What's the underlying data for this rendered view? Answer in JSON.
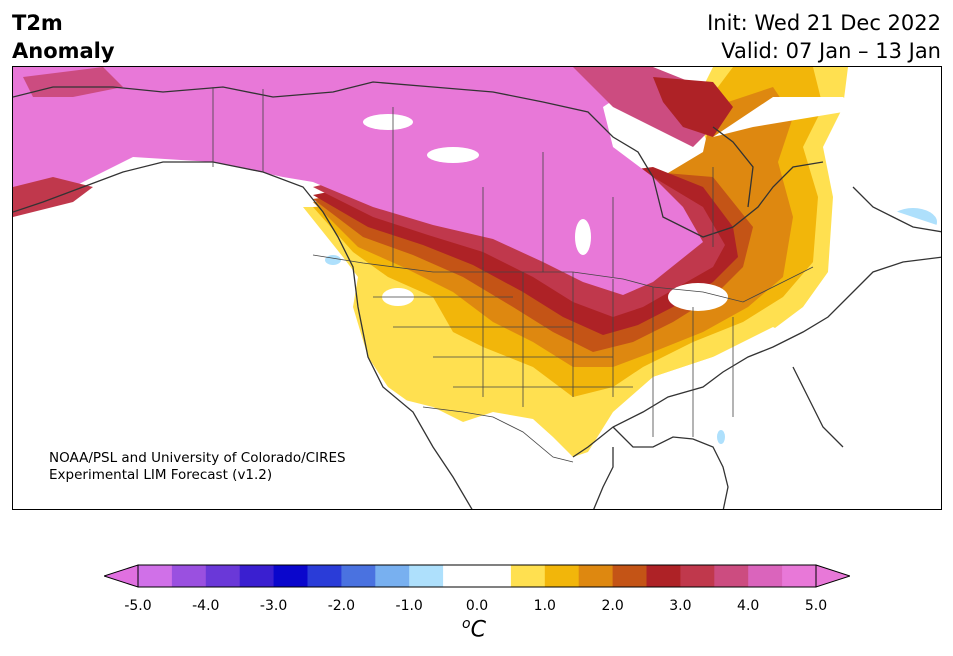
{
  "title": {
    "line1": "T2m",
    "line2": "Anomaly"
  },
  "dates": {
    "init": "Init: Wed 21 Dec 2022",
    "valid": "Valid: 07 Jan – 13 Jan"
  },
  "credit": {
    "line1": "NOAA/PSL and University of Colorado/CIRES",
    "line2": "Experimental LIM Forecast (v1.2)"
  },
  "colorbar": {
    "unit_base": "C",
    "unit_sup": "o",
    "ticks": [
      "-5.0",
      "-4.0",
      "-3.0",
      "-2.0",
      "-1.0",
      "0.0",
      "1.0",
      "2.0",
      "3.0",
      "4.0",
      "5.0"
    ],
    "colors": [
      "#d070e8",
      "#9a50e0",
      "#6a38d8",
      "#3a1fd0",
      "#0a06cc",
      "#2a3cd8",
      "#4a72e0",
      "#78b0f0",
      "#aee0fc",
      "#ffffff",
      "#ffffff",
      "#ffe050",
      "#f2b60a",
      "#de8810",
      "#c45416",
      "#ae2226",
      "#c0384c",
      "#cc4c80",
      "#da64bc",
      "#e878d8"
    ],
    "under_color": "#e070e0",
    "over_color": "#e878d8"
  },
  "map": {
    "region": "North America",
    "highlight_colors": {
      "strong_warm": "#e878d8",
      "red": "#c0384c",
      "orange": "#de8810",
      "yellow": "#ffe050",
      "light_blue": "#aee0fc"
    }
  }
}
